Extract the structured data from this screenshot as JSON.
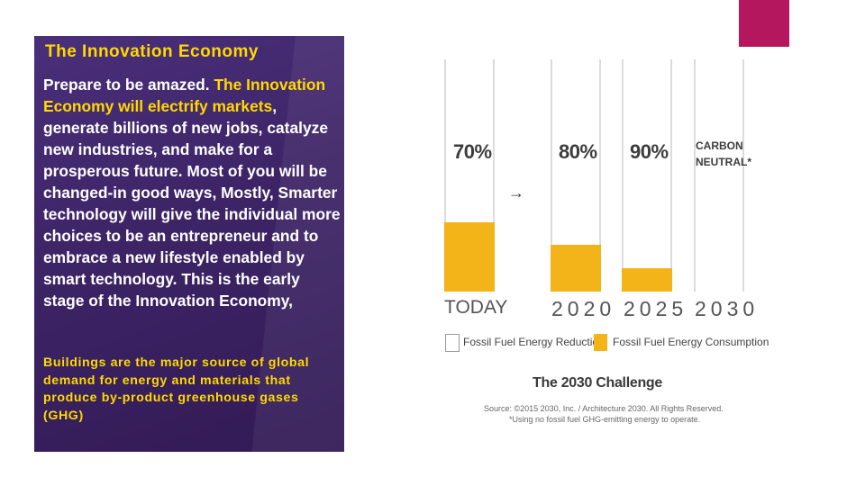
{
  "slide": {
    "title": "The Innovation Economy",
    "body_intro": " Prepare to be amazed. ",
    "body_highlight": "The Innovation Economy will electrify markets",
    "body_rest": ", generate billions of new jobs, catalyze new industries, and make for a prosperous future. Most of you will be changed-in good ways, Mostly, Smarter technology will give the individual more choices to be an entrepreneur and to embrace a new lifestyle enabled by smart technology. This is the early stage of the Innovation Economy,",
    "small_text": "Buildings are the major source of global demand for energy and materials that produce by-product greenhouse gases (GHG)",
    "colors": {
      "accent": "#b5175f",
      "panel": "#3d2466",
      "highlight": "#ffd900",
      "fill": "#f2b418"
    }
  },
  "infographic": {
    "bars": [
      {
        "label": "TODAY",
        "percent_label": "70%",
        "consumption_fraction": 0.3
      },
      {
        "label": "2020",
        "percent_label": "80%",
        "consumption_fraction": 0.2
      },
      {
        "label": "2025",
        "percent_label": "90%",
        "consumption_fraction": 0.1
      },
      {
        "label": "2030",
        "percent_label_line1": "CARBON",
        "percent_label_line2": "NEUTRAL*",
        "consumption_fraction": 0
      }
    ],
    "arrow": "→",
    "legend": [
      {
        "label": "Fossil Fuel Energy Reduction",
        "color": "#ffffff"
      },
      {
        "label": "Fossil Fuel Energy Consumption",
        "color": "#f2b418"
      }
    ],
    "title": "The 2030 Challenge",
    "source_line1": "Source: ©2015 2030, Inc. / Architecture 2030. All Rights Reserved.",
    "source_line2": "*Using no fossil fuel GHG-emitting energy to operate."
  }
}
